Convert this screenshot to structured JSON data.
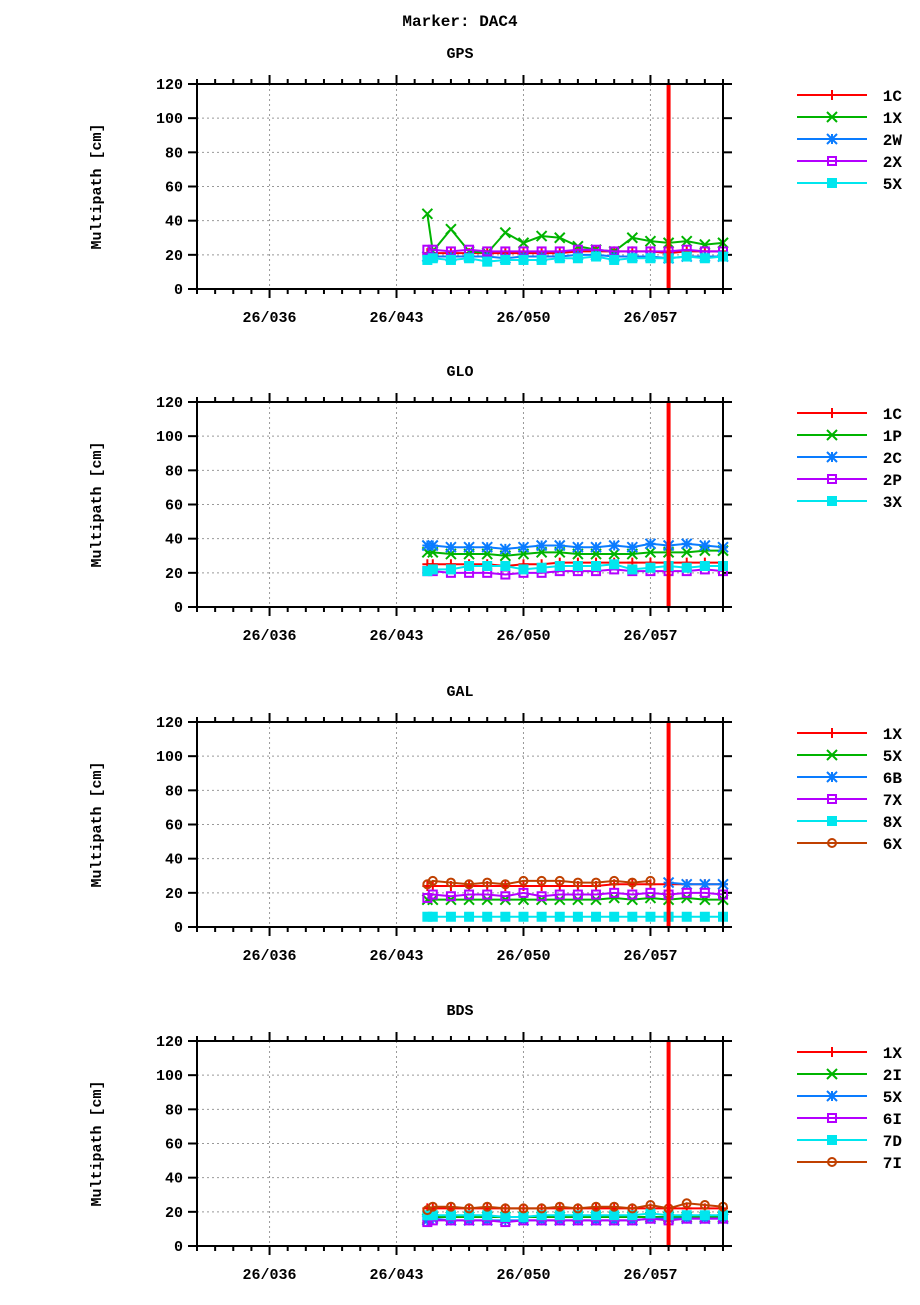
{
  "title": "Marker: DAC4",
  "colors": {
    "red": "#ff0000",
    "green": "#00b400",
    "blue": "#0a7cff",
    "purple": "#b400ff",
    "cyan": "#00e6ee",
    "brown": "#c04000"
  },
  "chart_data": [
    {
      "type": "line",
      "title": "GPS",
      "ylabel": "Multipath [cm]",
      "xlabel": "",
      "xlim": [
        32,
        61
      ],
      "ylim": [
        0,
        120
      ],
      "grid": true,
      "legend": "right",
      "xticks": [
        36,
        43,
        50,
        57
      ],
      "xtick_labels": [
        "26/036",
        "26/043",
        "26/050",
        "26/057"
      ],
      "yticks": [
        0,
        20,
        40,
        60,
        80,
        100,
        120
      ],
      "ytick_labels": [
        "0",
        "20",
        "40",
        "60",
        "80",
        "100",
        "120"
      ],
      "vertical_marker_x": 58,
      "x": [
        44.7,
        45,
        46,
        47,
        48,
        49,
        50,
        51,
        52,
        53,
        54,
        55,
        56,
        57,
        58,
        59,
        60,
        61
      ],
      "series": [
        {
          "name": "1C",
          "color": "red",
          "marker": "plus",
          "values": [
            21,
            21,
            21,
            21,
            21,
            21,
            21,
            21,
            21,
            22,
            22,
            22,
            22,
            22,
            21,
            22,
            22,
            22
          ]
        },
        {
          "name": "1X",
          "color": "green",
          "marker": "cross",
          "values": [
            44,
            22,
            35,
            22,
            21,
            33,
            27,
            31,
            30,
            25,
            23,
            22,
            30,
            28,
            27,
            28,
            26,
            27
          ]
        },
        {
          "name": "2W",
          "color": "blue",
          "marker": "star",
          "values": [
            19,
            19,
            19,
            19,
            19,
            18,
            19,
            19,
            19,
            20,
            20,
            19,
            19,
            19,
            18,
            19,
            19,
            19
          ]
        },
        {
          "name": "2X",
          "color": "purple",
          "marker": "open-square",
          "values": [
            23,
            23,
            22,
            23,
            22,
            22,
            22,
            22,
            22,
            23,
            23,
            22,
            22,
            22,
            22,
            23,
            22,
            22
          ]
        },
        {
          "name": "5X",
          "color": "cyan",
          "marker": "filled-square",
          "values": [
            17,
            18,
            17,
            18,
            16,
            17,
            17,
            17,
            18,
            18,
            19,
            17,
            18,
            18,
            18,
            19,
            18,
            19
          ]
        }
      ]
    },
    {
      "type": "line",
      "title": "GLO",
      "ylabel": "Multipath [cm]",
      "xlabel": "",
      "xlim": [
        32,
        61
      ],
      "ylim": [
        0,
        120
      ],
      "grid": true,
      "legend": "right",
      "xticks": [
        36,
        43,
        50,
        57
      ],
      "xtick_labels": [
        "26/036",
        "26/043",
        "26/050",
        "26/057"
      ],
      "yticks": [
        0,
        20,
        40,
        60,
        80,
        100,
        120
      ],
      "ytick_labels": [
        "0",
        "20",
        "40",
        "60",
        "80",
        "100",
        "120"
      ],
      "vertical_marker_x": 58,
      "x": [
        44.7,
        45,
        46,
        47,
        48,
        49,
        50,
        51,
        52,
        53,
        54,
        55,
        56,
        57,
        58,
        59,
        60,
        61
      ],
      "series": [
        {
          "name": "1C",
          "color": "red",
          "marker": "plus",
          "values": [
            25,
            25,
            25,
            25,
            25,
            24,
            25,
            25,
            26,
            26,
            26,
            26,
            26,
            26,
            26,
            26,
            26,
            26
          ]
        },
        {
          "name": "1P",
          "color": "green",
          "marker": "cross",
          "values": [
            32,
            32,
            31,
            31,
            31,
            30,
            31,
            32,
            32,
            31,
            31,
            31,
            31,
            32,
            32,
            32,
            33,
            33
          ]
        },
        {
          "name": "2C",
          "color": "blue",
          "marker": "star",
          "values": [
            36,
            36,
            35,
            35,
            35,
            34,
            35,
            36,
            36,
            35,
            35,
            36,
            35,
            37,
            36,
            37,
            36,
            35
          ]
        },
        {
          "name": "2P",
          "color": "purple",
          "marker": "open-square",
          "values": [
            21,
            21,
            20,
            20,
            20,
            19,
            20,
            20,
            21,
            21,
            21,
            22,
            21,
            21,
            21,
            21,
            22,
            21
          ]
        },
        {
          "name": "3X",
          "color": "cyan",
          "marker": "filled-square",
          "values": [
            21,
            22,
            22,
            24,
            24,
            24,
            22,
            23,
            24,
            24,
            24,
            25,
            22,
            23,
            24,
            23,
            24,
            24
          ]
        }
      ]
    },
    {
      "type": "line",
      "title": "GAL",
      "ylabel": "Multipath [cm]",
      "xlabel": "",
      "xlim": [
        32,
        61
      ],
      "ylim": [
        0,
        120
      ],
      "grid": true,
      "legend": "right",
      "xticks": [
        36,
        43,
        50,
        57
      ],
      "xtick_labels": [
        "26/036",
        "26/043",
        "26/050",
        "26/057"
      ],
      "yticks": [
        0,
        20,
        40,
        60,
        80,
        100,
        120
      ],
      "ytick_labels": [
        "0",
        "20",
        "40",
        "60",
        "80",
        "100",
        "120"
      ],
      "vertical_marker_x": 58,
      "x": [
        44.7,
        45,
        46,
        47,
        48,
        49,
        50,
        51,
        52,
        53,
        54,
        55,
        56,
        57,
        58,
        59,
        60,
        61
      ],
      "series": [
        {
          "name": "1X",
          "color": "red",
          "marker": "plus",
          "values": [
            24,
            24,
            24,
            24,
            24,
            24,
            24,
            24,
            24,
            24,
            24,
            25,
            25,
            25,
            25,
            25,
            25,
            25
          ]
        },
        {
          "name": "5X",
          "color": "green",
          "marker": "cross",
          "values": [
            16,
            16,
            16,
            16,
            16,
            16,
            16,
            16,
            16,
            16,
            16,
            17,
            16,
            17,
            16,
            17,
            16,
            16
          ]
        },
        {
          "name": "6B",
          "color": "blue",
          "marker": "star",
          "values": [
            null,
            null,
            null,
            null,
            null,
            null,
            null,
            null,
            null,
            null,
            null,
            null,
            null,
            null,
            26,
            25,
            25,
            25
          ]
        },
        {
          "name": "7X",
          "color": "purple",
          "marker": "open-square",
          "values": [
            17,
            19,
            18,
            19,
            19,
            18,
            20,
            18,
            19,
            19,
            19,
            20,
            19,
            20,
            19,
            20,
            20,
            19
          ]
        },
        {
          "name": "8X",
          "color": "cyan",
          "marker": "filled-square",
          "values": [
            6,
            6,
            6,
            6,
            6,
            6,
            6,
            6,
            6,
            6,
            6,
            6,
            6,
            6,
            6,
            6,
            6,
            6
          ]
        },
        {
          "name": "6X",
          "color": "brown",
          "marker": "dot-circle",
          "values": [
            25,
            27,
            26,
            25,
            26,
            25,
            27,
            27,
            27,
            26,
            26,
            27,
            26,
            27,
            null,
            null,
            null,
            null
          ]
        }
      ]
    },
    {
      "type": "line",
      "title": "BDS",
      "ylabel": "Multipath [cm]",
      "xlabel": "",
      "xlim": [
        32,
        61
      ],
      "ylim": [
        0,
        120
      ],
      "grid": true,
      "legend": "right",
      "xticks": [
        36,
        43,
        50,
        57
      ],
      "xtick_labels": [
        "26/036",
        "26/043",
        "26/050",
        "26/057"
      ],
      "yticks": [
        0,
        20,
        40,
        60,
        80,
        100,
        120
      ],
      "ytick_labels": [
        "0",
        "20",
        "40",
        "60",
        "80",
        "100",
        "120"
      ],
      "vertical_marker_x": 58,
      "x": [
        44.7,
        45,
        46,
        47,
        48,
        49,
        50,
        51,
        52,
        53,
        54,
        55,
        56,
        57,
        58,
        59,
        60,
        61
      ],
      "series": [
        {
          "name": "1X",
          "color": "red",
          "marker": "plus",
          "values": [
            22,
            22,
            22,
            22,
            22,
            22,
            22,
            22,
            22,
            22,
            22,
            22,
            22,
            22,
            22,
            22,
            22,
            22
          ]
        },
        {
          "name": "2I",
          "color": "green",
          "marker": "cross",
          "values": [
            16,
            17,
            17,
            17,
            17,
            17,
            17,
            17,
            17,
            17,
            17,
            17,
            17,
            17,
            17,
            17,
            17,
            17
          ]
        },
        {
          "name": "5X",
          "color": "blue",
          "marker": "star",
          "values": [
            15,
            16,
            15,
            15,
            15,
            15,
            15,
            15,
            15,
            15,
            15,
            15,
            15,
            16,
            16,
            16,
            16,
            16
          ]
        },
        {
          "name": "6I",
          "color": "purple",
          "marker": "open-square",
          "values": [
            14,
            15,
            15,
            15,
            15,
            14,
            15,
            15,
            15,
            15,
            15,
            15,
            15,
            16,
            15,
            16,
            16,
            16
          ]
        },
        {
          "name": "7D",
          "color": "cyan",
          "marker": "filled-square",
          "values": [
            18,
            18,
            18,
            18,
            18,
            17,
            17,
            18,
            18,
            18,
            18,
            18,
            18,
            19,
            18,
            18,
            18,
            18
          ]
        },
        {
          "name": "7I",
          "color": "brown",
          "marker": "dot-circle",
          "values": [
            21,
            23,
            23,
            22,
            23,
            22,
            22,
            22,
            23,
            22,
            23,
            23,
            22,
            24,
            22,
            25,
            24,
            23
          ]
        }
      ]
    }
  ]
}
